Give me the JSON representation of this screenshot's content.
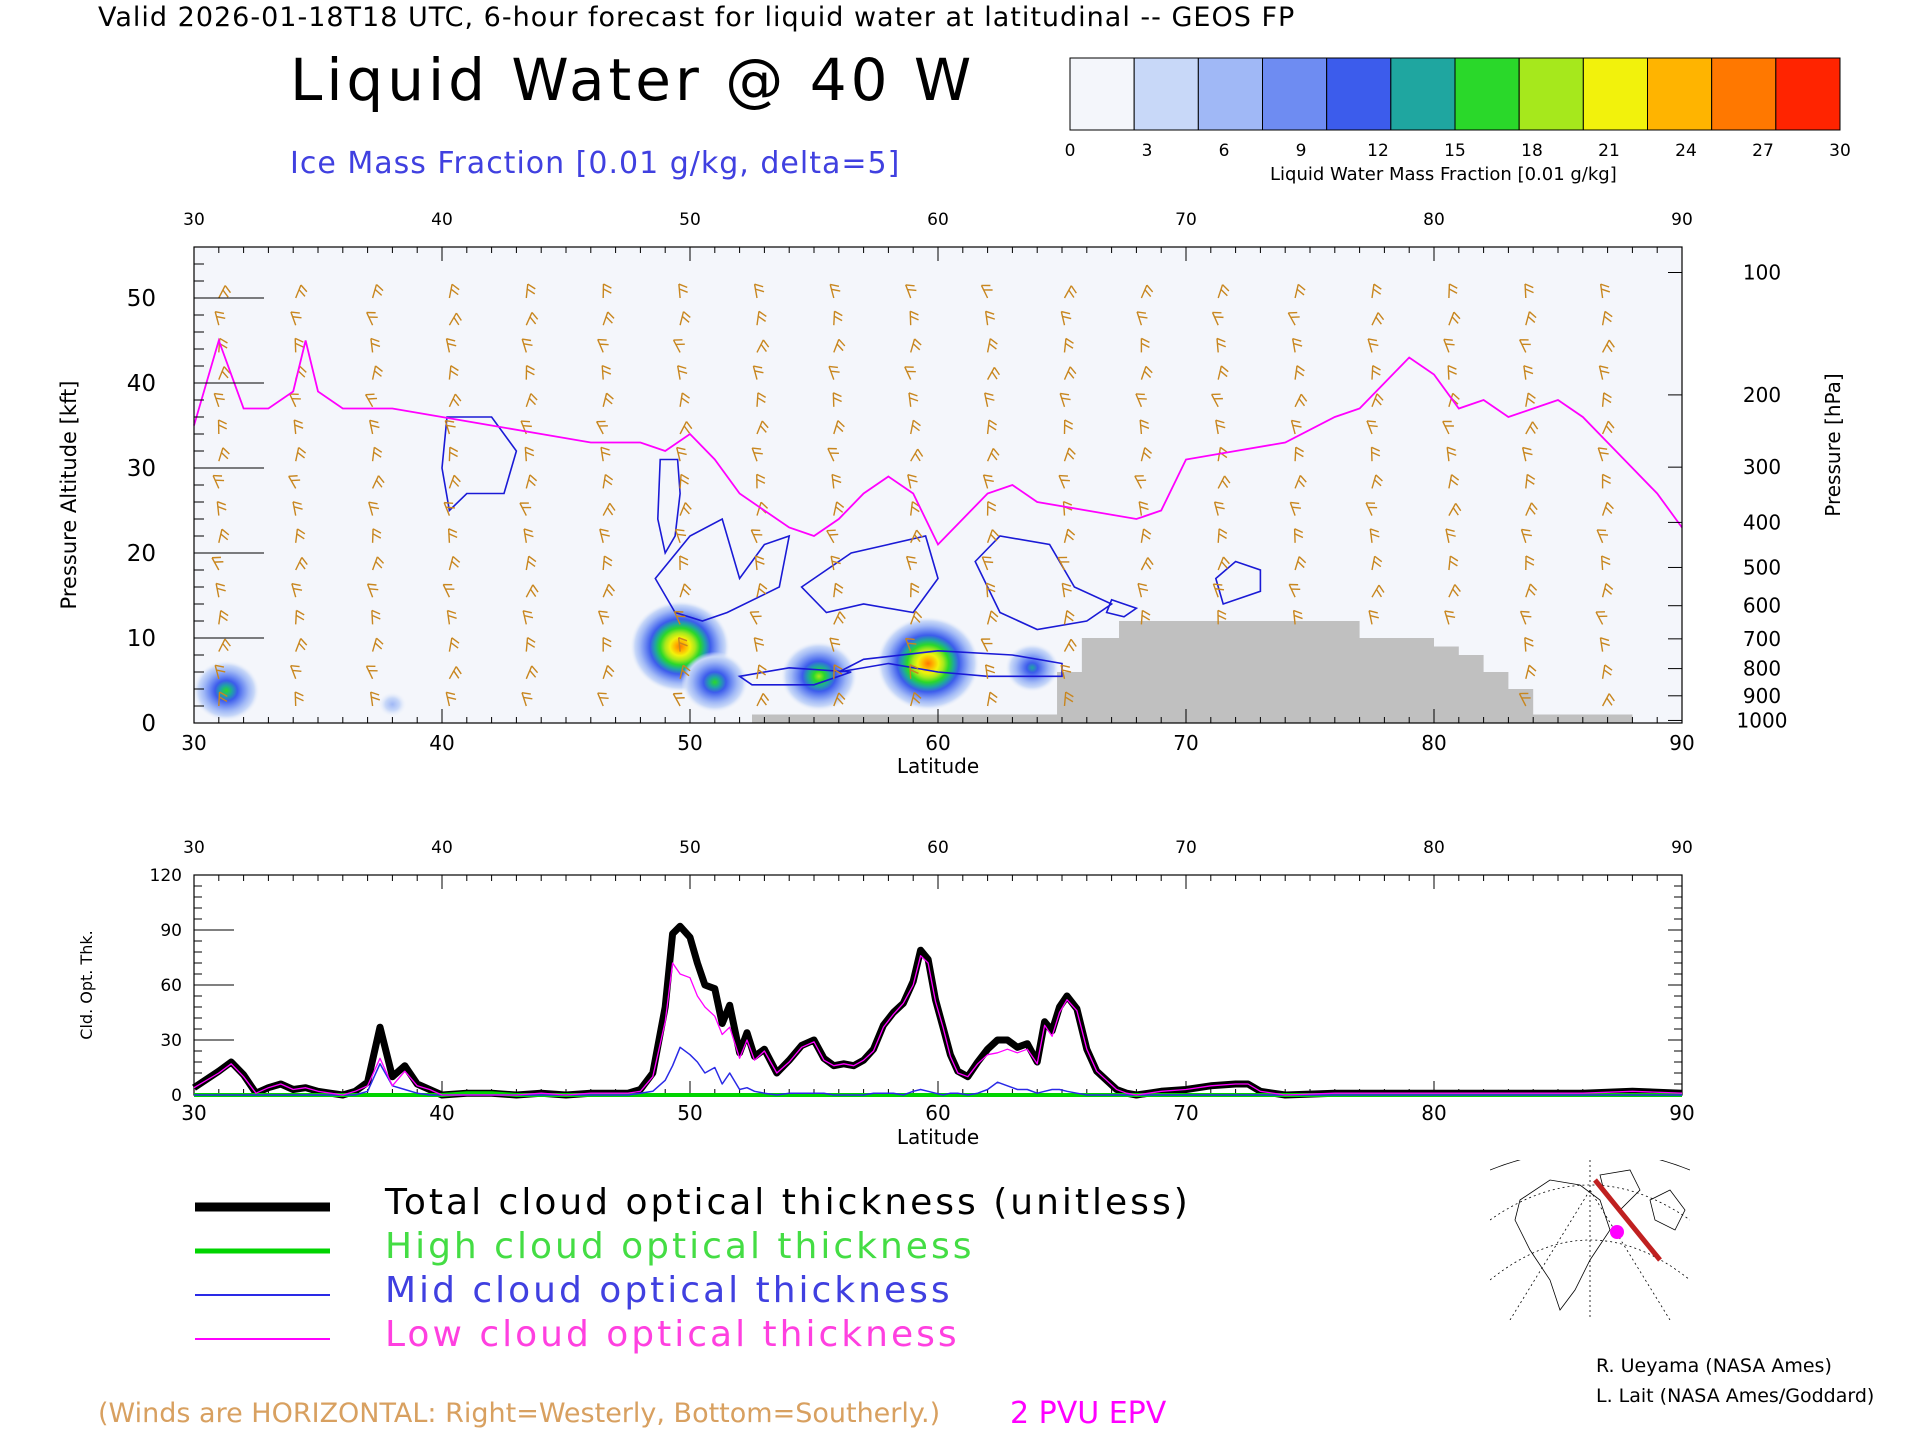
{
  "header": {
    "top_line": "Valid 2026-01-18T18 UTC, 6-hour forecast for liquid water at latitudinal -- GEOS FP",
    "title": "Liquid Water @ 40 W",
    "ice_label": "Ice Mass Fraction [0.01 g/kg, delta=5]"
  },
  "colorbar": {
    "ticks": [
      "0",
      "3",
      "6",
      "9",
      "12",
      "15",
      "18",
      "21",
      "24",
      "27",
      "30"
    ],
    "colors": [
      "#f4f6fb",
      "#c8d8f8",
      "#a0b8f6",
      "#6e8cf2",
      "#3c5cec",
      "#1fa6a0",
      "#2ad82a",
      "#a6e81c",
      "#f2f20c",
      "#ffb400",
      "#ff7800",
      "#ff2400"
    ],
    "label": "Liquid Water Mass Fraction [0.01 g/kg]"
  },
  "chart_data": [
    {
      "type": "heatmap",
      "xlabel": "Latitude",
      "ylabel": "Pressure Altitude [kft]",
      "ylabel_right": "Pressure [hPa]",
      "xlim": [
        30,
        90
      ],
      "ylim": [
        0,
        56
      ],
      "x_ticks": [
        "30",
        "40",
        "50",
        "60",
        "70",
        "80",
        "90"
      ],
      "y_ticks": [
        "0",
        "10",
        "20",
        "30",
        "40",
        "50"
      ],
      "pressure_ticks": [
        "100",
        "200",
        "300",
        "400",
        "500",
        "600",
        "700",
        "800",
        "900",
        "1000"
      ],
      "pvu_line": {
        "name": "2 PVU EPV",
        "x": [
          30,
          31,
          32,
          33,
          34,
          34.5,
          35,
          36,
          38,
          40,
          42,
          44,
          46,
          48,
          49,
          50,
          51,
          52,
          53,
          54,
          55,
          56,
          57,
          58,
          59,
          60,
          61,
          62,
          63,
          64,
          66,
          68,
          69,
          70,
          72,
          74,
          76,
          77,
          78,
          79,
          80,
          81,
          82,
          83,
          84,
          85,
          86,
          87,
          88,
          89,
          90
        ],
        "y": [
          35,
          45,
          37,
          37,
          39,
          45,
          39,
          37,
          37,
          36,
          35,
          34,
          33,
          33,
          32,
          34,
          31,
          27,
          25,
          23,
          22,
          24,
          27,
          29,
          27,
          21,
          24,
          27,
          28,
          26,
          25,
          24,
          25,
          31,
          32,
          33,
          36,
          37,
          40,
          43,
          41,
          37,
          38,
          36,
          37,
          38,
          36,
          33,
          30,
          27,
          23
        ]
      },
      "terrain_outline": [
        [
          52.5,
          0
        ],
        [
          52.5,
          1
        ],
        [
          64.8,
          1
        ],
        [
          64.8,
          6
        ],
        [
          65.8,
          6
        ],
        [
          65.8,
          10
        ],
        [
          67.3,
          10
        ],
        [
          67.3,
          12
        ],
        [
          77,
          12
        ],
        [
          77,
          10
        ],
        [
          80,
          10
        ],
        [
          80,
          9
        ],
        [
          81,
          9
        ],
        [
          81,
          8
        ],
        [
          82,
          8
        ],
        [
          82,
          6
        ],
        [
          83,
          6
        ],
        [
          83,
          4
        ],
        [
          84,
          4
        ],
        [
          84,
          1
        ],
        [
          88,
          1
        ],
        [
          88,
          0
        ]
      ],
      "liquid_blobs": [
        {
          "lat": 31.3,
          "alt": 3.8,
          "peak": 17
        },
        {
          "lat": 38.0,
          "alt": 2.2,
          "peak": 6
        },
        {
          "lat": 49.6,
          "alt": 9.0,
          "peak": 27
        },
        {
          "lat": 51.0,
          "alt": 4.8,
          "peak": 17
        },
        {
          "lat": 55.2,
          "alt": 5.5,
          "peak": 20
        },
        {
          "lat": 59.6,
          "alt": 7.0,
          "peak": 28
        },
        {
          "lat": 63.8,
          "alt": 6.5,
          "peak": 13
        }
      ]
    },
    {
      "type": "line",
      "xlabel": "Latitude",
      "ylabel": "Cld. Opt. Thk.",
      "xlim": [
        30,
        90
      ],
      "ylim": [
        0,
        120
      ],
      "x_ticks": [
        "30",
        "40",
        "50",
        "60",
        "70",
        "80",
        "90"
      ],
      "y_ticks": [
        "0",
        "30",
        "60",
        "90",
        "120"
      ],
      "x": [
        30,
        31,
        31.5,
        32,
        32.5,
        33,
        33.5,
        34,
        34.5,
        35,
        35.5,
        36,
        36.5,
        37,
        37.5,
        38,
        38.5,
        39,
        39.5,
        40,
        41,
        42,
        43,
        44,
        45,
        46,
        47,
        47.5,
        48,
        48.5,
        49,
        49.3,
        49.6,
        50,
        50.3,
        50.6,
        51,
        51.3,
        51.6,
        52,
        52.3,
        52.6,
        53,
        53.5,
        54,
        54.5,
        55,
        55.4,
        55.8,
        56.2,
        56.6,
        57,
        57.4,
        57.8,
        58.2,
        58.6,
        59,
        59.3,
        59.6,
        59.9,
        60.2,
        60.5,
        60.8,
        61.2,
        61.6,
        62,
        62.4,
        62.8,
        63.2,
        63.6,
        64,
        64.3,
        64.6,
        64.9,
        65.2,
        65.6,
        66,
        66.4,
        66.8,
        67.2,
        67.6,
        68,
        68.5,
        69,
        70,
        71,
        72,
        72.5,
        73,
        74,
        76,
        78,
        80,
        82,
        84,
        86,
        88,
        90
      ],
      "series": [
        {
          "name": "Total cloud optical thickness (unitless)",
          "color": "#000000",
          "values": [
            4,
            13,
            18,
            11,
            1,
            4,
            6,
            3,
            4,
            2,
            1,
            0,
            2,
            7,
            37,
            10,
            16,
            6,
            3,
            0,
            1,
            1,
            0,
            1,
            0,
            1,
            1,
            1,
            3,
            12,
            48,
            88,
            92,
            86,
            72,
            60,
            58,
            39,
            49,
            23,
            34,
            21,
            25,
            12,
            19,
            27,
            30,
            20,
            16,
            17,
            16,
            19,
            25,
            38,
            45,
            50,
            62,
            79,
            74,
            52,
            37,
            22,
            13,
            10,
            18,
            25,
            30,
            30,
            26,
            28,
            18,
            40,
            35,
            48,
            54,
            47,
            25,
            13,
            8,
            3,
            1,
            0,
            1,
            2,
            3,
            5,
            6,
            6,
            2,
            0,
            1,
            1,
            1,
            1,
            1,
            1,
            2,
            1
          ]
        },
        {
          "name": "High cloud optical thickness",
          "color": "#00d400",
          "values": [
            0,
            0,
            0,
            0,
            0,
            0,
            0,
            0,
            0,
            0,
            0,
            0,
            0,
            0,
            0,
            0,
            0,
            0,
            0,
            0,
            1,
            1,
            0,
            0,
            0,
            0,
            0,
            0,
            0,
            0,
            0,
            0,
            0,
            0,
            0,
            0,
            0,
            0,
            0,
            0,
            0,
            0,
            0,
            0,
            0,
            0,
            0,
            0,
            0,
            0,
            0,
            0,
            0,
            0,
            0,
            0,
            0,
            0,
            0,
            0,
            0,
            0,
            0,
            0,
            0,
            0,
            0,
            0,
            0,
            0,
            0,
            0,
            0,
            0,
            0,
            0,
            0,
            0,
            0,
            0,
            0,
            0,
            0,
            0,
            0,
            0,
            0,
            0,
            0,
            0,
            0,
            0,
            0,
            0,
            0,
            0,
            0,
            0
          ]
        },
        {
          "name": "Mid cloud optical thickness",
          "color": "#2a2ae6",
          "values": [
            0,
            0,
            0,
            0,
            0,
            0,
            0,
            0,
            0,
            0,
            0,
            0,
            0,
            2,
            17,
            5,
            3,
            1,
            0,
            0,
            0,
            0,
            0,
            0,
            0,
            0,
            0,
            0,
            1,
            2,
            8,
            16,
            26,
            22,
            18,
            12,
            15,
            6,
            12,
            3,
            4,
            2,
            1,
            0,
            1,
            1,
            1,
            1,
            0,
            0,
            0,
            0,
            1,
            1,
            1,
            0,
            2,
            3,
            2,
            1,
            0,
            1,
            1,
            0,
            1,
            3,
            7,
            5,
            3,
            3,
            1,
            2,
            3,
            3,
            2,
            1,
            0,
            0,
            0,
            0,
            0,
            0,
            0,
            0,
            0,
            0,
            0,
            0,
            0,
            0,
            0,
            0,
            0,
            0,
            0,
            0,
            0,
            0
          ]
        },
        {
          "name": "Low cloud optical thickness",
          "color": "#ff00ff",
          "values": [
            4,
            12,
            17,
            10,
            1,
            4,
            6,
            3,
            4,
            2,
            1,
            0,
            2,
            5,
            20,
            5,
            13,
            5,
            3,
            0,
            0,
            0,
            0,
            1,
            0,
            1,
            1,
            1,
            2,
            10,
            40,
            72,
            66,
            64,
            54,
            48,
            43,
            33,
            37,
            20,
            30,
            19,
            24,
            12,
            18,
            26,
            29,
            19,
            16,
            17,
            16,
            19,
            24,
            37,
            44,
            50,
            60,
            76,
            72,
            51,
            37,
            21,
            12,
            10,
            17,
            22,
            23,
            25,
            23,
            25,
            17,
            38,
            32,
            45,
            52,
            46,
            25,
            13,
            8,
            3,
            1,
            0,
            1,
            2,
            3,
            5,
            6,
            6,
            2,
            0,
            1,
            1,
            1,
            1,
            1,
            1,
            2,
            1
          ]
        }
      ]
    }
  ],
  "legend": {
    "total": "Total cloud optical thickness (unitless)",
    "high": "High cloud optical thickness",
    "mid": "Mid cloud optical thickness",
    "low": "Low cloud optical thickness"
  },
  "footer": {
    "winds_note": "(Winds are HORIZONTAL: Right=Westerly, Bottom=Southerly.)",
    "pvu_label": "2 PVU EPV",
    "credit1": "R. Ueyama (NASA Ames)",
    "credit2": "L. Lait (NASA Ames/Goddard)"
  },
  "colors": {
    "wind_barbs": "#c8861e",
    "ice_contour": "#1a1ad6",
    "pvu_line": "#ff00ff",
    "terrain": "#c0c0c0"
  }
}
